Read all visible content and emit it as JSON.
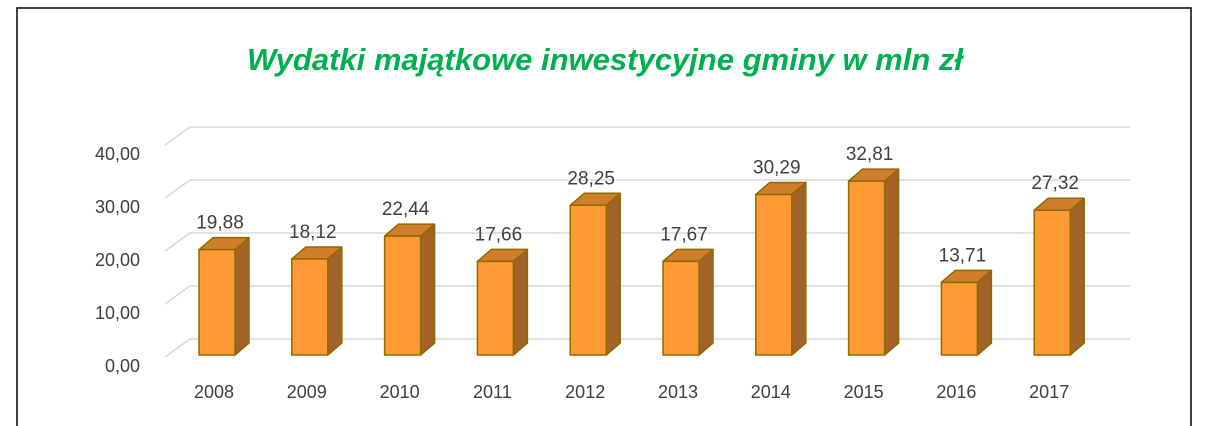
{
  "chart_data": {
    "type": "bar3d",
    "title": "Wydatki majątkowe inwestycyjne gminy w mln zł",
    "categories": [
      "2008",
      "2009",
      "2010",
      "2011",
      "2012",
      "2013",
      "2014",
      "2015",
      "2016",
      "2017"
    ],
    "values": [
      19.88,
      18.12,
      22.44,
      17.66,
      28.25,
      17.67,
      30.29,
      32.81,
      13.71,
      27.32
    ],
    "value_labels": [
      "19,88",
      "18,12",
      "22,44",
      "17,66",
      "28,25",
      "17,67",
      "30,29",
      "32,81",
      "13,71",
      "27,32"
    ],
    "color": "#ff9933",
    "ylim": [
      0,
      40
    ],
    "yticks": [
      {
        "value": 0,
        "label": "0,00"
      },
      {
        "value": 10,
        "label": "10,00"
      },
      {
        "value": 20,
        "label": "20,00"
      },
      {
        "value": 30,
        "label": "30,00"
      },
      {
        "value": 40,
        "label": "40,00"
      }
    ],
    "grid": true
  }
}
